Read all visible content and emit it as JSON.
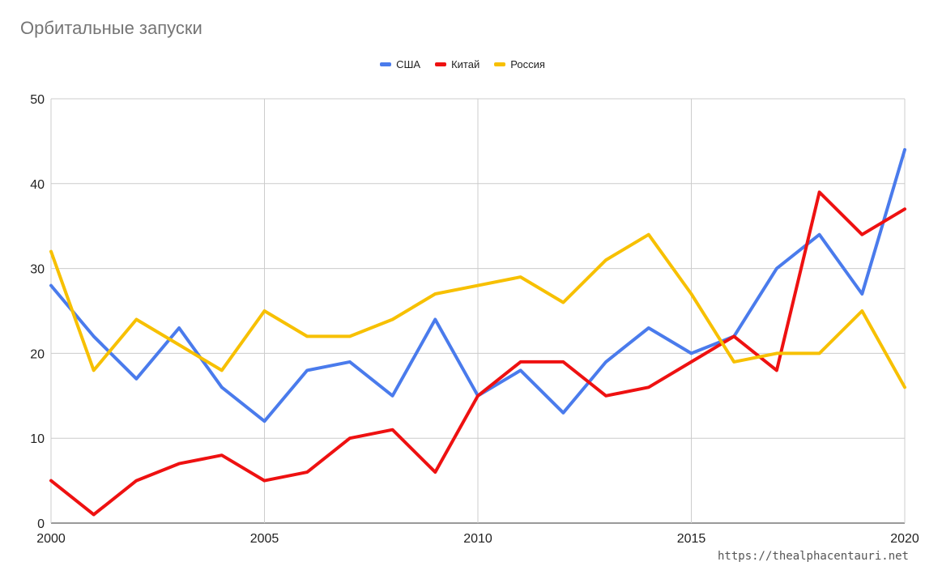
{
  "watermark": "https://thealphacentauri.net",
  "chart_data": {
    "type": "line",
    "title": "Орбитальные запуски",
    "xlabel": "",
    "ylabel": "",
    "x": [
      2000,
      2001,
      2002,
      2003,
      2004,
      2005,
      2006,
      2007,
      2008,
      2009,
      2010,
      2011,
      2012,
      2013,
      2014,
      2015,
      2016,
      2017,
      2018,
      2019,
      2020
    ],
    "xlim": [
      2000,
      2020
    ],
    "ylim": [
      0,
      50
    ],
    "x_ticks": [
      "2000",
      "2005",
      "2010",
      "2015",
      "2020"
    ],
    "y_ticks": [
      "0",
      "10",
      "20",
      "30",
      "40",
      "50"
    ],
    "grid": true,
    "legend_position": "top-center",
    "series": [
      {
        "name": "США",
        "color": "#4a7bec",
        "values": [
          28,
          22,
          17,
          23,
          16,
          12,
          18,
          19,
          15,
          24,
          15,
          18,
          13,
          19,
          23,
          20,
          22,
          30,
          34,
          27,
          44
        ]
      },
      {
        "name": "Китай",
        "color": "#ee1111",
        "values": [
          5,
          1,
          5,
          7,
          8,
          5,
          6,
          10,
          11,
          6,
          15,
          19,
          19,
          15,
          16,
          19,
          22,
          18,
          39,
          34,
          37
        ]
      },
      {
        "name": "Россия",
        "color": "#f7c000",
        "values": [
          32,
          18,
          24,
          21,
          18,
          25,
          22,
          22,
          24,
          27,
          28,
          29,
          26,
          31,
          34,
          27,
          19,
          20,
          20,
          25,
          16
        ]
      }
    ]
  }
}
